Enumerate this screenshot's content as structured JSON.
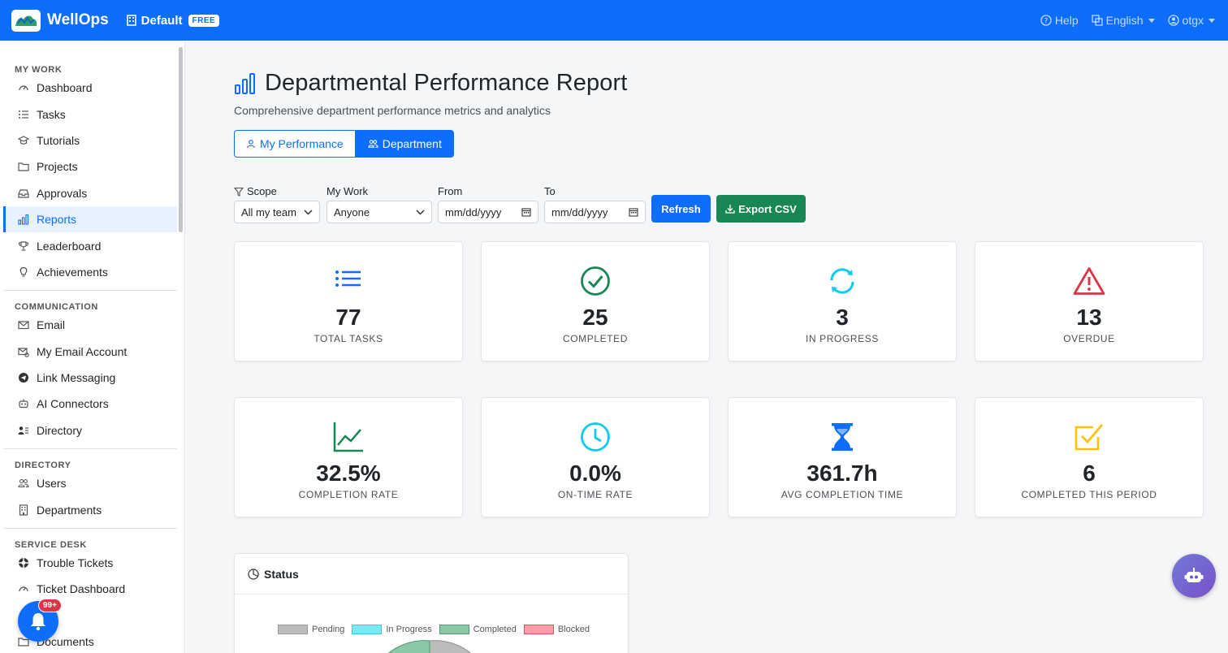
{
  "topbar": {
    "brand": "WellOps",
    "workspace": "Default",
    "workspace_badge": "FREE",
    "help": "Help",
    "language": "English",
    "user": "otgx"
  },
  "sidebar": {
    "sections": [
      {
        "title": "MY WORK",
        "items": [
          {
            "label": "Dashboard",
            "icon": "gauge-icon"
          },
          {
            "label": "Tasks",
            "icon": "list-icon"
          },
          {
            "label": "Tutorials",
            "icon": "mortarboard-icon"
          },
          {
            "label": "Projects",
            "icon": "folder-icon"
          },
          {
            "label": "Approvals",
            "icon": "inbox-icon"
          },
          {
            "label": "Reports",
            "icon": "bar-chart-icon",
            "active": true
          },
          {
            "label": "Leaderboard",
            "icon": "trophy-icon"
          },
          {
            "label": "Achievements",
            "icon": "lightbulb-icon"
          }
        ]
      },
      {
        "title": "COMMUNICATION",
        "items": [
          {
            "label": "Email",
            "icon": "envelope-icon"
          },
          {
            "label": "My Email Account",
            "icon": "envelope-gear-icon"
          },
          {
            "label": "Link Messaging",
            "icon": "telegram-icon"
          },
          {
            "label": "AI Connectors",
            "icon": "robot-icon"
          },
          {
            "label": "Directory",
            "icon": "person-lines-icon"
          }
        ]
      },
      {
        "title": "DIRECTORY",
        "items": [
          {
            "label": "Users",
            "icon": "people-icon"
          },
          {
            "label": "Departments",
            "icon": "building-icon"
          }
        ]
      },
      {
        "title": "SERVICE DESK",
        "items": [
          {
            "label": "Trouble Tickets",
            "icon": "life-preserver-icon"
          },
          {
            "label": "Ticket Dashboard",
            "icon": "gauge-icon"
          },
          {
            "label": "",
            "icon": "person-icon"
          },
          {
            "label": "Documents",
            "icon": "folder-icon"
          }
        ]
      }
    ]
  },
  "notifications": {
    "badge": "99+"
  },
  "page": {
    "title": "Departmental Performance Report",
    "subtitle": "Comprehensive department performance metrics and analytics",
    "toggle": {
      "my_performance": "My Performance",
      "department": "Department"
    }
  },
  "filters": {
    "scope_label": "Scope",
    "scope_value": "All my team",
    "mywork_label": "My Work",
    "mywork_value": "Anyone",
    "from_label": "From",
    "from_placeholder": "mm/dd/yyyy",
    "to_label": "To",
    "to_placeholder": "mm/dd/yyyy",
    "refresh": "Refresh",
    "export": "Export CSV"
  },
  "stats": [
    {
      "value": "77",
      "label": "TOTAL TASKS",
      "icon": "list-icon",
      "color": "#0d6efd"
    },
    {
      "value": "25",
      "label": "COMPLETED",
      "icon": "check-circle-icon",
      "color": "#198754"
    },
    {
      "value": "3",
      "label": "IN PROGRESS",
      "icon": "arrow-repeat-icon",
      "color": "#0dcaf0"
    },
    {
      "value": "13",
      "label": "OVERDUE",
      "icon": "warning-triangle-icon",
      "color": "#dc3545"
    },
    {
      "value": "32.5%",
      "label": "COMPLETION RATE",
      "icon": "graph-up-icon",
      "color": "#198754"
    },
    {
      "value": "0.0%",
      "label": "ON-TIME RATE",
      "icon": "clock-icon",
      "color": "#0dcaf0"
    },
    {
      "value": "361.7h",
      "label": "AVG COMPLETION TIME",
      "icon": "hourglass-icon",
      "color": "#0d6efd"
    },
    {
      "value": "6",
      "label": "COMPLETED THIS PERIOD",
      "icon": "check-square-icon",
      "color": "#ffc107"
    }
  ],
  "status_card": {
    "title": "Status",
    "legend": [
      {
        "label": "Pending",
        "fill": "#bcbcbc",
        "stroke": "#9a9a9a"
      },
      {
        "label": "In Progress",
        "fill": "#84e3f4",
        "stroke": "#3fc5dc"
      },
      {
        "label": "Completed",
        "fill": "#8cc7a6",
        "stroke": "#4f9a72"
      },
      {
        "label": "Blocked",
        "fill": "#f3a2a9",
        "stroke": "#d9535f"
      }
    ]
  }
}
